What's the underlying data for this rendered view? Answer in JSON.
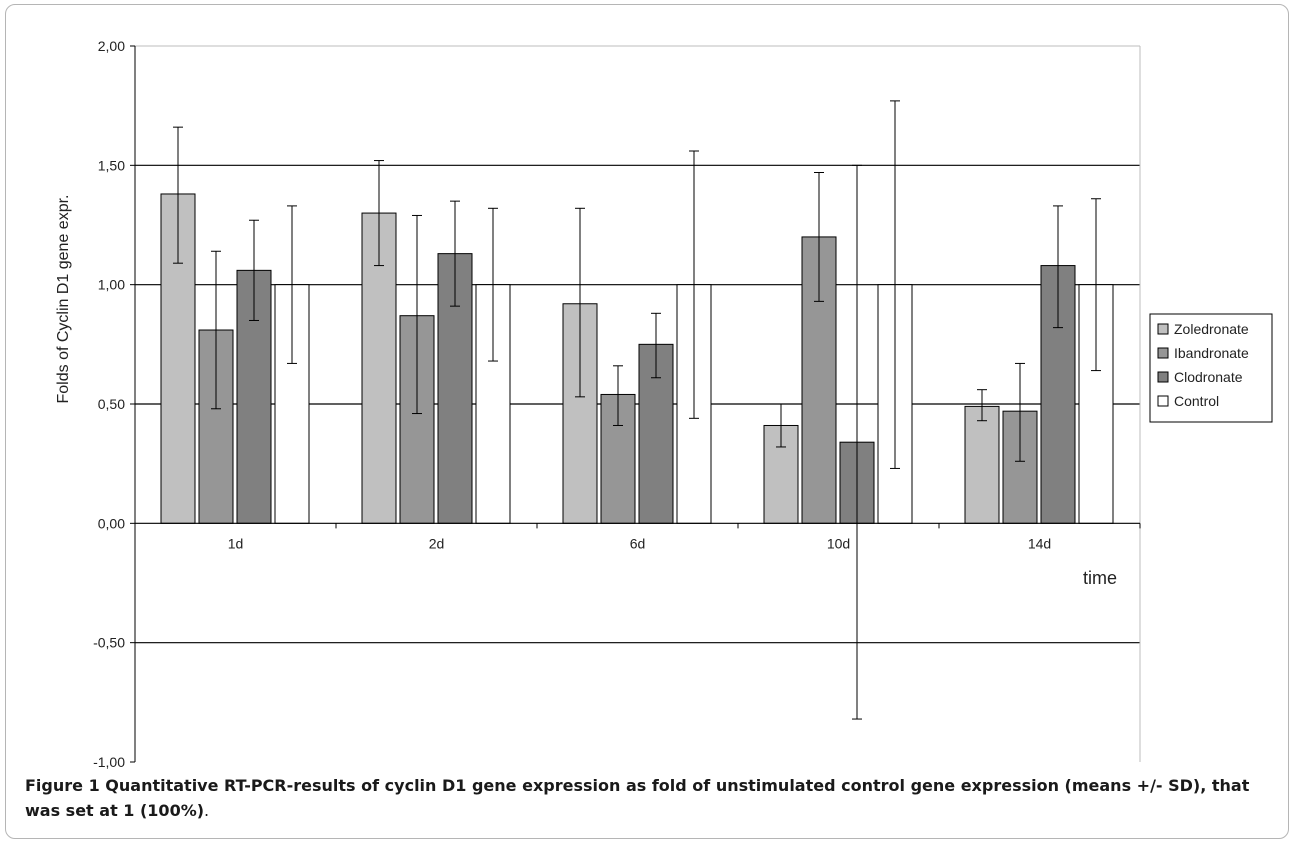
{
  "chart_data": {
    "type": "bar",
    "ylabel": "Folds of Cyclin D1 gene expr.",
    "xlabel": "time",
    "categories": [
      "1d",
      "2d",
      "6d",
      "10d",
      "14d"
    ],
    "ylim": [
      -1.0,
      2.0
    ],
    "yticks": [
      "2,00",
      "1,50",
      "1,00",
      "0,50",
      "0,00",
      "-0,50",
      "-1,00"
    ],
    "ytick_values": [
      2.0,
      1.5,
      1.0,
      0.5,
      0.0,
      -0.5,
      -1.0
    ],
    "grid": "horizontal",
    "legend_position": "right",
    "series": [
      {
        "name": "Zoledronate",
        "color": "#c0c0c0",
        "values": [
          1.38,
          1.3,
          0.92,
          0.41,
          0.49
        ],
        "error_low": [
          1.09,
          1.08,
          0.53,
          0.32,
          0.43
        ],
        "error_high": [
          1.66,
          1.52,
          1.32,
          0.5,
          0.56
        ]
      },
      {
        "name": "Ibandronate",
        "color": "#969696",
        "values": [
          0.81,
          0.87,
          0.54,
          1.2,
          0.47
        ],
        "error_low": [
          0.48,
          0.46,
          0.41,
          0.93,
          0.26
        ],
        "error_high": [
          1.14,
          1.29,
          0.66,
          1.47,
          0.67
        ]
      },
      {
        "name": "Clodronate",
        "color": "#808080",
        "values": [
          1.06,
          1.13,
          0.75,
          0.34,
          1.08
        ],
        "error_low": [
          0.85,
          0.91,
          0.61,
          -0.82,
          0.82
        ],
        "error_high": [
          1.27,
          1.35,
          0.88,
          1.5,
          1.33
        ]
      },
      {
        "name": "Control",
        "color": "#ffffff",
        "values": [
          1.0,
          1.0,
          1.0,
          1.0,
          1.0
        ],
        "error_low": [
          0.67,
          0.68,
          0.44,
          0.23,
          0.64
        ],
        "error_high": [
          1.33,
          1.32,
          1.56,
          1.77,
          1.36
        ]
      }
    ]
  },
  "caption": {
    "label": "Figure 1",
    "text": "Quantitative RT-PCR-results of cyclin D1 gene expression as fold of unstimulated control gene expression (means +/- SD), that was set at 1 (100%)",
    "end": "."
  }
}
